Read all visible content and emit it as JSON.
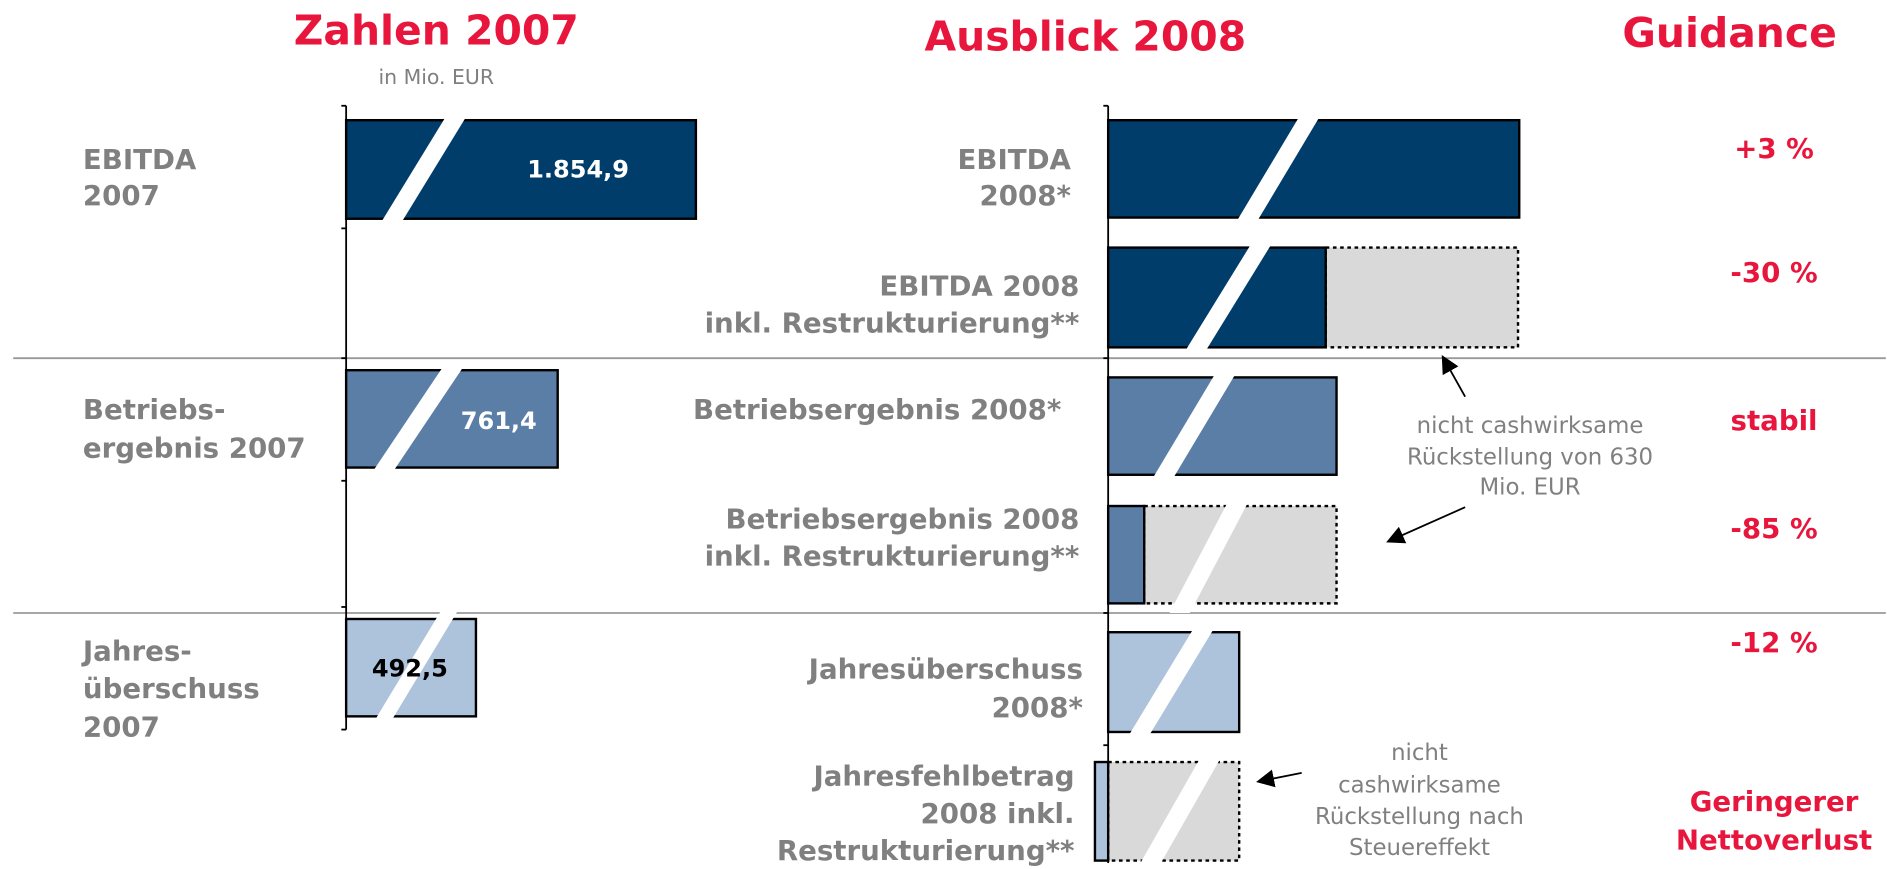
{
  "headings": {
    "left": "Zahlen 2007",
    "unit": "in Mio. EUR",
    "middle": "Ausblick 2008",
    "right": "Guidance"
  },
  "figures_2007": [
    {
      "label": [
        "EBITDA",
        "2007"
      ],
      "value": "1.854,9"
    },
    {
      "label": [
        "Betriebs-",
        "ergebnis 2007"
      ],
      "value": "761,4"
    },
    {
      "label": [
        "Jahres-",
        "überschuss",
        "2007"
      ],
      "value": "492,5"
    }
  ],
  "outlook_2008": [
    {
      "label": [
        "EBITDA",
        "2008*"
      ],
      "guidance": [
        "+3 %"
      ]
    },
    {
      "label": [
        "EBITDA 2008",
        "inkl. Restrukturierung**"
      ],
      "guidance": [
        "-30 %"
      ]
    },
    {
      "label": [
        "Betriebsergebnis 2008*"
      ],
      "guidance": [
        "stabil"
      ]
    },
    {
      "label": [
        "Betriebsergebnis 2008",
        "inkl. Restrukturierung**"
      ],
      "guidance": [
        "-85 %"
      ]
    },
    {
      "label": [
        "Jahresüberschuss",
        "2008*"
      ],
      "guidance": [
        "-12 %"
      ]
    },
    {
      "label": [
        "Jahresfehlbetrag",
        "2008 inkl.",
        "Restrukturierung**"
      ],
      "guidance": [
        "Geringerer",
        "Nettoverlust"
      ]
    }
  ],
  "notes": [
    [
      "nicht cashwirksame",
      "Rückstellung von 630",
      "Mio. EUR"
    ],
    [
      "nicht",
      "cashwirksame",
      "Rückstellung nach",
      "Steuereffekt"
    ]
  ]
}
